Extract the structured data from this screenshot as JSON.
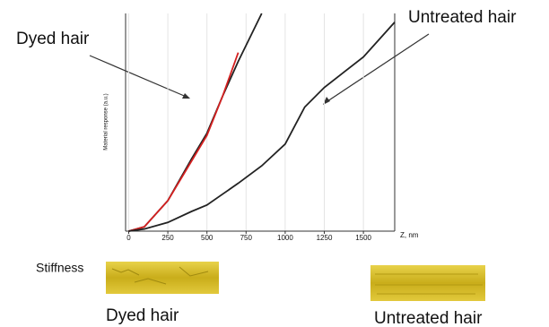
{
  "chart_data": {
    "type": "line",
    "ylabel": "Material response (a.u.)",
    "xlabel": "Z, nm",
    "x": [
      0,
      100,
      250,
      400,
      500,
      600,
      700,
      850,
      1000,
      1125,
      1250,
      1500,
      1700
    ],
    "series": [
      {
        "color": "#222222",
        "values": [
          0,
          2,
          14,
          33,
          45,
          62,
          78,
          100,
          null,
          null,
          null,
          null,
          null
        ]
      },
      {
        "color": "#d42020",
        "values": [
          0,
          2,
          14,
          32,
          44,
          62,
          82,
          null,
          null,
          null,
          null,
          null,
          null
        ]
      },
      {
        "color": "#222222",
        "values": [
          0,
          1,
          4,
          9,
          12,
          17,
          22,
          30,
          40,
          57,
          66,
          80,
          96
        ]
      }
    ],
    "xlim": [
      -20,
      1700
    ],
    "ylim": [
      0,
      100
    ],
    "xticks": [
      0,
      250,
      500,
      750,
      1000,
      1250,
      1500
    ],
    "grid": true,
    "annotations": [
      "Dyed hair",
      "Untreated hair"
    ]
  },
  "panel": {
    "label": "Stiffness",
    "images": [
      {
        "caption": "Dyed hair"
      },
      {
        "caption": "Untreated hair"
      }
    ]
  }
}
